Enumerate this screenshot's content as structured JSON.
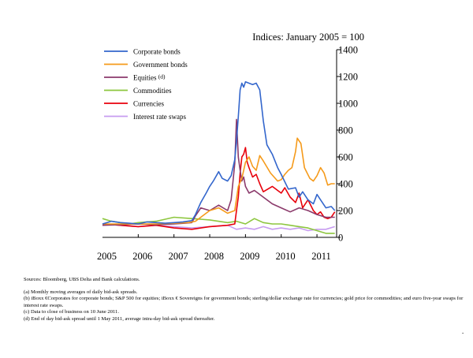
{
  "chart_data": {
    "type": "line",
    "title": "Indices: January 2005 = 100",
    "xlabel": "",
    "ylabel": "",
    "xlim": [
      2005.0,
      2011.55
    ],
    "ylim": [
      0,
      1400
    ],
    "yticks": [
      0,
      200,
      400,
      600,
      800,
      1000,
      1200,
      1400
    ],
    "xtick_labels": [
      "2005",
      "2006",
      "2007",
      "2008",
      "2009",
      "2010",
      "2011"
    ],
    "x_axis_type": "time (years)",
    "grid": false,
    "legend_position": "top-left",
    "series": [
      {
        "name": "Corporate bonds",
        "color": "#3366cc",
        "x": [
          2005.0,
          2005.25,
          2005.5,
          2005.75,
          2006.0,
          2006.25,
          2006.5,
          2006.75,
          2007.0,
          2007.25,
          2007.5,
          2007.6,
          2007.75,
          2007.9,
          2008.0,
          2008.1,
          2008.25,
          2008.35,
          2008.5,
          2008.6,
          2008.7,
          2008.75,
          2008.8,
          2008.85,
          2008.9,
          2008.95,
          2009.0,
          2009.1,
          2009.2,
          2009.3,
          2009.4,
          2009.5,
          2009.6,
          2009.75,
          2009.9,
          2010.0,
          2010.2,
          2010.4,
          2010.5,
          2010.6,
          2010.75,
          2010.9,
          2011.0,
          2011.1,
          2011.25,
          2011.4,
          2011.5
        ],
        "y": [
          100,
          120,
          110,
          105,
          100,
          115,
          110,
          105,
          110,
          115,
          125,
          170,
          260,
          330,
          380,
          420,
          490,
          440,
          420,
          460,
          580,
          720,
          900,
          1100,
          1150,
          1120,
          1160,
          1150,
          1140,
          1150,
          1100,
          870,
          690,
          620,
          520,
          470,
          360,
          370,
          300,
          340,
          280,
          250,
          320,
          280,
          220,
          230,
          200
        ]
      },
      {
        "name": "Government bonds",
        "color": "#f59a1a",
        "x": [
          2005.0,
          2005.5,
          2006.0,
          2006.5,
          2007.0,
          2007.4,
          2007.6,
          2007.75,
          2008.0,
          2008.25,
          2008.5,
          2008.7,
          2008.8,
          2008.9,
          2009.0,
          2009.1,
          2009.2,
          2009.3,
          2009.4,
          2009.5,
          2009.7,
          2009.9,
          2010.0,
          2010.1,
          2010.2,
          2010.3,
          2010.4,
          2010.45,
          2010.55,
          2010.65,
          2010.8,
          2010.9,
          2011.0,
          2011.1,
          2011.2,
          2011.3,
          2011.4,
          2011.5
        ],
        "y": [
          100,
          100,
          100,
          100,
          105,
          110,
          120,
          150,
          200,
          220,
          180,
          200,
          380,
          440,
          560,
          600,
          530,
          500,
          610,
          570,
          480,
          420,
          430,
          470,
          500,
          520,
          640,
          740,
          700,
          520,
          440,
          420,
          460,
          520,
          480,
          390,
          400,
          400
        ]
      },
      {
        "name": "Equities (d)",
        "color": "#8b3a6b",
        "x": [
          2005.0,
          2005.5,
          2006.0,
          2006.5,
          2007.0,
          2007.3,
          2007.5,
          2007.6,
          2007.75,
          2008.0,
          2008.25,
          2008.5,
          2008.6,
          2008.7,
          2008.75,
          2008.8,
          2008.85,
          2008.9,
          2008.95,
          2009.0,
          2009.1,
          2009.25,
          2009.5,
          2009.75,
          2010.0,
          2010.25,
          2010.5,
          2010.75,
          2011.0,
          2011.25,
          2011.5
        ],
        "y": [
          90,
          95,
          100,
          95,
          100,
          105,
          110,
          160,
          220,
          200,
          240,
          200,
          280,
          550,
          880,
          600,
          500,
          420,
          450,
          380,
          330,
          350,
          300,
          250,
          220,
          190,
          220,
          200,
          170,
          150,
          150
        ]
      },
      {
        "name": "Commodities",
        "color": "#8dc63f",
        "x": [
          2005.0,
          2005.25,
          2005.5,
          2005.75,
          2006.0,
          2006.5,
          2007.0,
          2007.5,
          2008.0,
          2008.5,
          2008.75,
          2009.0,
          2009.25,
          2009.5,
          2009.75,
          2010.0,
          2010.25,
          2010.5,
          2010.75,
          2011.0,
          2011.25,
          2011.5
        ],
        "y": [
          140,
          120,
          110,
          100,
          110,
          120,
          150,
          140,
          130,
          110,
          120,
          100,
          140,
          110,
          100,
          100,
          90,
          80,
          70,
          50,
          30,
          30
        ]
      },
      {
        "name": "Currencies",
        "color": "#e8000b",
        "x": [
          2005.0,
          2005.5,
          2006.0,
          2006.5,
          2007.0,
          2007.5,
          2008.0,
          2008.5,
          2008.7,
          2008.75,
          2008.8,
          2008.85,
          2008.9,
          2008.95,
          2009.0,
          2009.05,
          2009.1,
          2009.2,
          2009.3,
          2009.4,
          2009.5,
          2009.75,
          2010.0,
          2010.1,
          2010.25,
          2010.4,
          2010.5,
          2010.6,
          2010.75,
          2010.9,
          2011.0,
          2011.1,
          2011.2,
          2011.3,
          2011.4,
          2011.5
        ],
        "y": [
          100,
          90,
          80,
          90,
          70,
          60,
          80,
          90,
          100,
          200,
          300,
          480,
          600,
          620,
          670,
          560,
          520,
          450,
          470,
          400,
          340,
          380,
          330,
          370,
          300,
          260,
          330,
          220,
          280,
          200,
          170,
          190,
          150,
          140,
          150,
          190
        ]
      },
      {
        "name": "Interest rate swaps",
        "color": "#c79cf0",
        "x": [
          2005.0,
          2005.5,
          2006.0,
          2006.5,
          2007.0,
          2007.5,
          2008.0,
          2008.5,
          2008.75,
          2009.0,
          2009.25,
          2009.5,
          2009.75,
          2010.0,
          2010.25,
          2010.5,
          2010.75,
          2011.0,
          2011.25,
          2011.5
        ],
        "y": [
          100,
          90,
          80,
          90,
          80,
          70,
          80,
          90,
          60,
          70,
          60,
          80,
          60,
          70,
          60,
          70,
          50,
          60,
          60,
          80
        ]
      }
    ]
  },
  "sources": "Sources:  Bloomberg, UBS Delta and Bank calculations.",
  "footnotes": [
    "(a) Monthly moving averages of daily bid-ask spreads.",
    "(b) iBoxx €Corporates for corporate bonds; S&P 500 for equities; iBoxx € Sovereigns for government bonds; sterling/dollar exchange rate for currencies; gold price for commodities; and euro five-year swaps for interest rate swaps.",
    "(c) Data to close of business on 10 June 2011.",
    "(d) End of day bid-ask spread until 1 May 2011, average intra-day bid-ask spread thereafter."
  ],
  "trailing_mark": "-"
}
